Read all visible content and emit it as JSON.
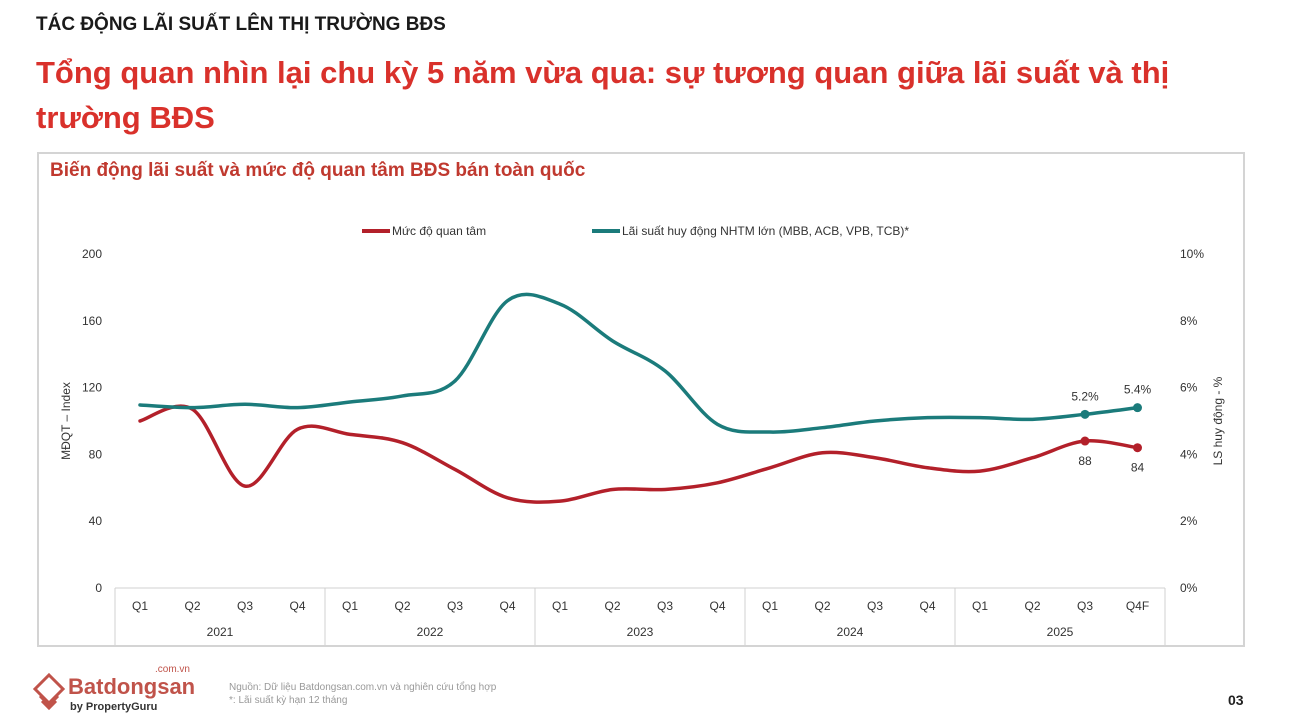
{
  "header": {
    "kicker": "TÁC ĐỘNG LÃI SUẤT LÊN THỊ TRƯỜNG BĐS",
    "title": "Tổng quan nhìn lại chu kỳ 5 năm vừa qua: sự tương quan giữa lãi suất và thị trường BĐS"
  },
  "chart_data": {
    "type": "line",
    "title": "Biến động lãi suất và mức độ quan tâm BĐS bán toàn quốc",
    "categories": [
      "Q1",
      "Q2",
      "Q3",
      "Q4",
      "Q1",
      "Q2",
      "Q3",
      "Q4",
      "Q1",
      "Q2",
      "Q3",
      "Q4",
      "Q1",
      "Q2",
      "Q3",
      "Q4",
      "Q1",
      "Q2",
      "Q3",
      "Q4F"
    ],
    "years": [
      "2021",
      "2022",
      "2023",
      "2024",
      "2025"
    ],
    "ylabel": "MĐQT – Index",
    "y2label": "LS huy động - %",
    "ylim": [
      0,
      200
    ],
    "yticks": [
      "0",
      "40",
      "80",
      "120",
      "160",
      "200"
    ],
    "y2lim": [
      0,
      10
    ],
    "y2ticks": [
      "0%",
      "2%",
      "4%",
      "6%",
      "8%",
      "10%"
    ],
    "legend_position": "top",
    "series": [
      {
        "name": "Mức độ quan tâm",
        "axis": "left",
        "color": "#b3202a",
        "values": [
          100,
          107,
          61,
          95,
          92,
          87,
          71,
          54,
          52,
          59,
          59,
          63,
          72,
          81,
          78,
          72,
          70,
          78,
          88,
          84
        ],
        "labels": {
          "18": "88",
          "19": "84"
        }
      },
      {
        "name": "Lãi suất huy động NHTM lớn (MBB, ACB, VPB, TCB)*",
        "axis": "right",
        "color": "#1b7b7b",
        "values": [
          5.48,
          5.4,
          5.5,
          5.4,
          5.57,
          5.75,
          6.2,
          8.6,
          8.5,
          7.4,
          6.5,
          4.9,
          4.67,
          4.8,
          5.0,
          5.1,
          5.1,
          5.05,
          5.2,
          5.4
        ],
        "labels": {
          "18": "5.2%",
          "19": "5.4%"
        }
      }
    ]
  },
  "footer": {
    "source": "Nguồn: Dữ liệu Batdongsan.com.vn và nghiên cứu tổng hợp",
    "note": "*: Lãi suất kỳ hạn 12 tháng",
    "page": "03",
    "brand": "Batdongsan",
    "brand_suffix": ".com.vn",
    "brand_by": "by PropertyGuru"
  }
}
